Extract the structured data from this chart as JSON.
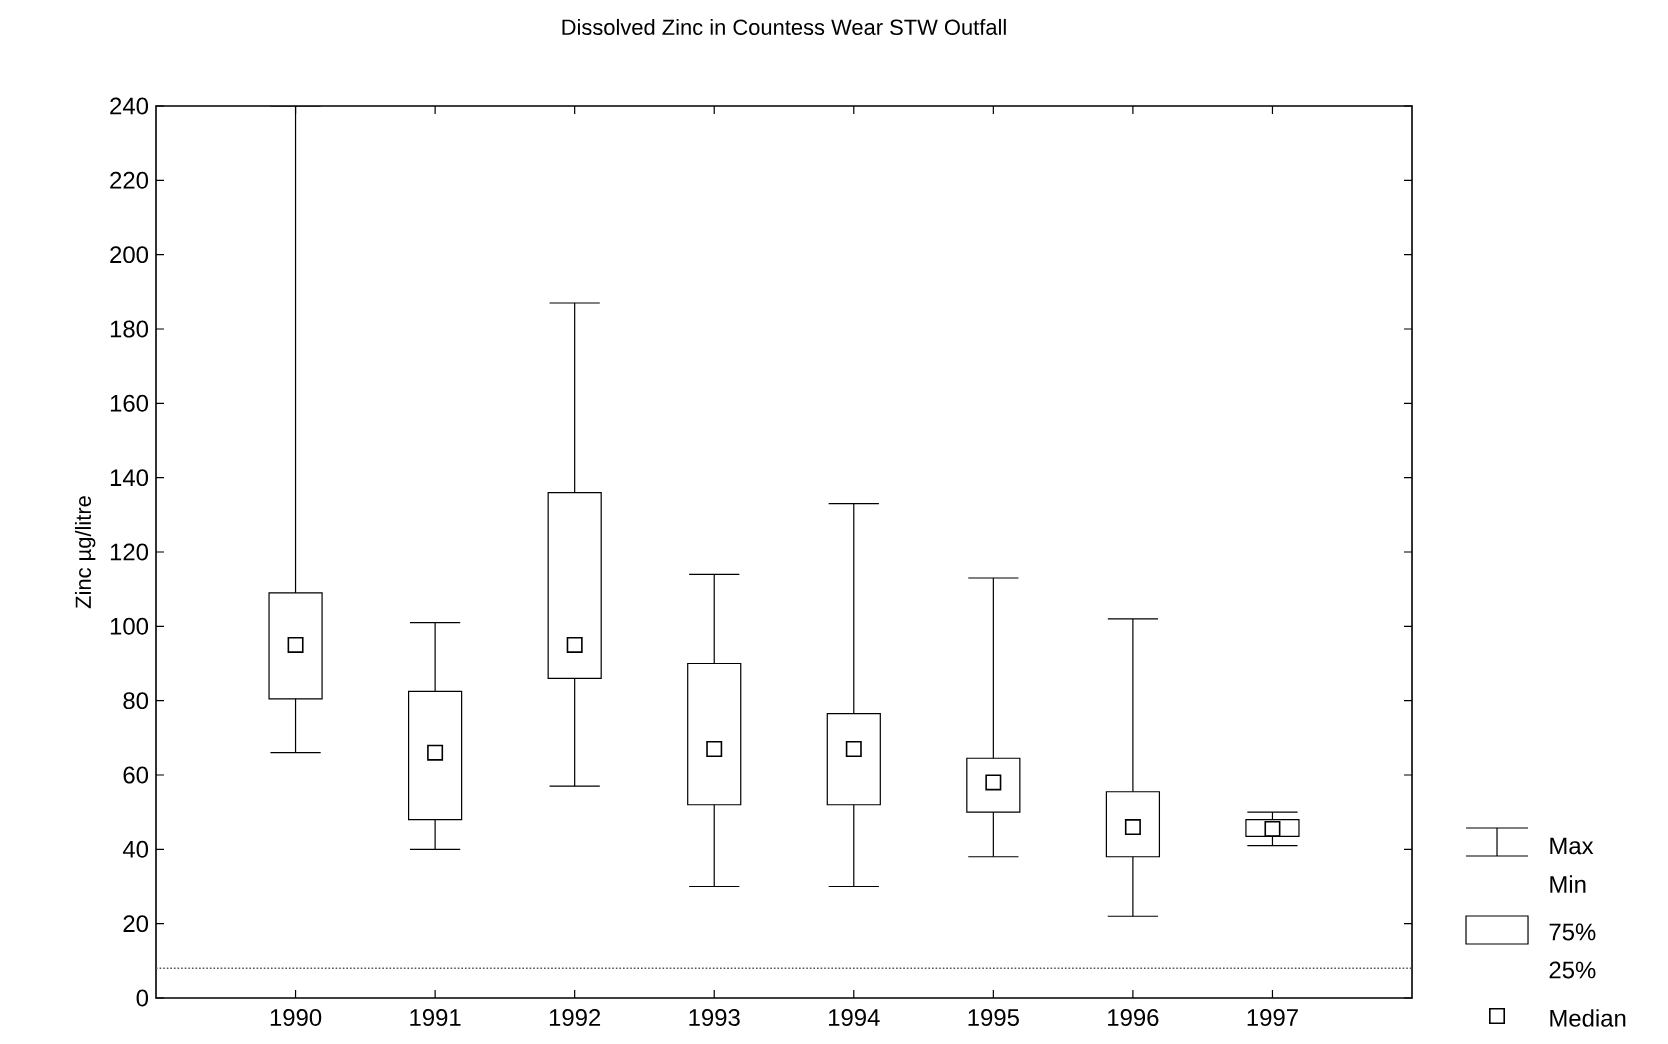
{
  "chart_data": {
    "type": "box",
    "title": "Dissolved Zinc in Countess Wear STW Outfall",
    "ylabel": "Zinc µg/litre",
    "categories": [
      "1990",
      "1991",
      "1992",
      "1993",
      "1994",
      "1995",
      "1996",
      "1997"
    ],
    "boxes": [
      {
        "low": 66,
        "q1": 80.5,
        "median": 95,
        "q3": 109,
        "high": 240
      },
      {
        "low": 40,
        "q1": 48,
        "median": 66,
        "q3": 82.5,
        "high": 101
      },
      {
        "low": 57,
        "q1": 86,
        "median": 95,
        "q3": 136,
        "high": 187
      },
      {
        "low": 30,
        "q1": 52,
        "median": 67,
        "q3": 90,
        "high": 114
      },
      {
        "low": 30,
        "q1": 52,
        "median": 67,
        "q3": 76.5,
        "high": 133
      },
      {
        "low": 38,
        "q1": 50,
        "median": 58,
        "q3": 64.5,
        "high": 113
      },
      {
        "low": 22,
        "q1": 38,
        "median": 46,
        "q3": 55.5,
        "high": 102
      },
      {
        "low": 41,
        "q1": 43.5,
        "median": 45.5,
        "q3": 48,
        "high": 50
      }
    ],
    "ylim": [
      0,
      240
    ],
    "yticks": [
      0,
      20,
      40,
      60,
      80,
      100,
      120,
      140,
      160,
      180,
      200,
      220,
      240
    ],
    "ref_lines": [
      {
        "axis": "y",
        "value": 8,
        "line_style": "dotted",
        "color": "#555555"
      }
    ],
    "marker": "square",
    "grid": false,
    "annotations": [
      "Max",
      "Min",
      "75%",
      "25%",
      "Median"
    ]
  }
}
